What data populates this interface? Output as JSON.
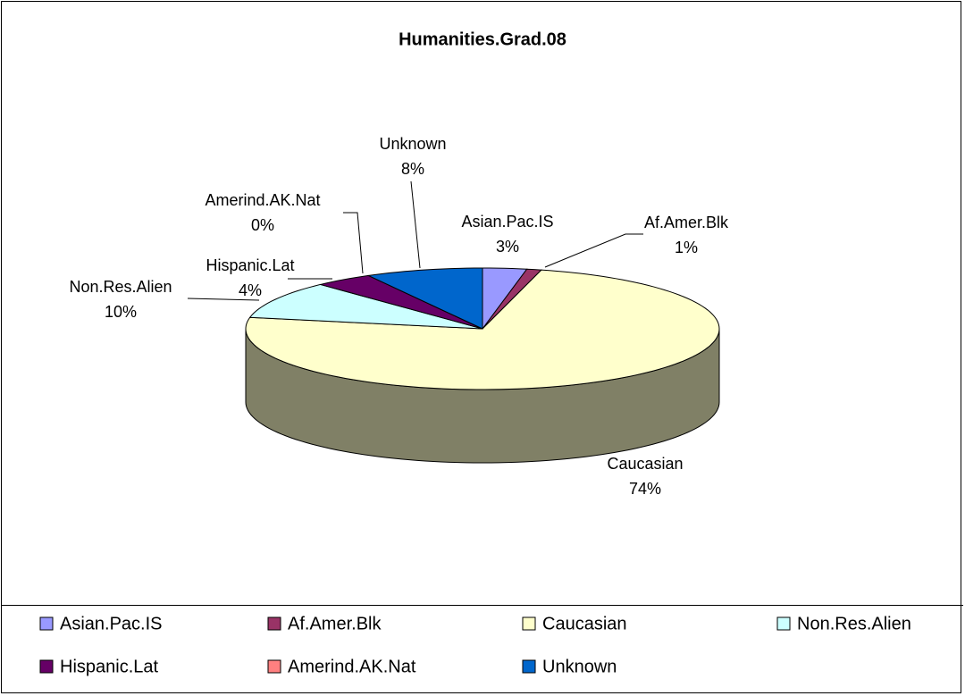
{
  "chart_data": {
    "type": "pie3d",
    "title": "Humanities.Grad.08",
    "categories": [
      "Asian.Pac.IS",
      "Af.Amer.Blk",
      "Caucasian",
      "Non.Res.Alien",
      "Hispanic.Lat",
      "Amerind.AK.Nat",
      "Unknown"
    ],
    "values": [
      3,
      1,
      74,
      10,
      4,
      0,
      8
    ],
    "value_labels": [
      "3%",
      "1%",
      "74%",
      "10%",
      "4%",
      "0%",
      "8%"
    ],
    "colors": [
      "#9999ff",
      "#993366",
      "#ffffcc",
      "#ccffff",
      "#660066",
      "#ff8080",
      "#0066cc"
    ],
    "legend": "bottom"
  }
}
